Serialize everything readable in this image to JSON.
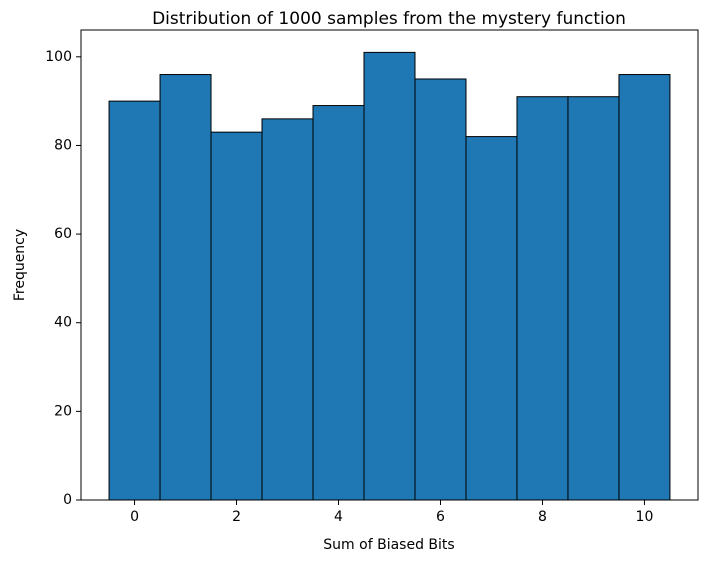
{
  "chart_data": {
    "type": "histogram",
    "title": "Distribution of 1000 samples from the mystery function",
    "x_label": "Sum of Biased Bits",
    "y_label": "Frequency",
    "bins": [
      -0.5,
      0.5,
      1.5,
      2.5,
      3.5,
      4.5,
      5.5,
      6.5,
      7.5,
      8.5,
      9.5,
      10.5
    ],
    "counts": [
      90,
      96,
      83,
      86,
      89,
      101,
      95,
      82,
      91,
      91,
      96
    ],
    "color": "#1f77b4",
    "edgecolor": "#000000",
    "xlim": [
      -1.05,
      11.05
    ],
    "xticks": [
      0,
      2,
      4,
      6,
      8,
      10
    ],
    "ylim": [
      0,
      106.05
    ],
    "yticks": [
      0,
      20,
      40,
      60,
      80,
      100
    ]
  }
}
